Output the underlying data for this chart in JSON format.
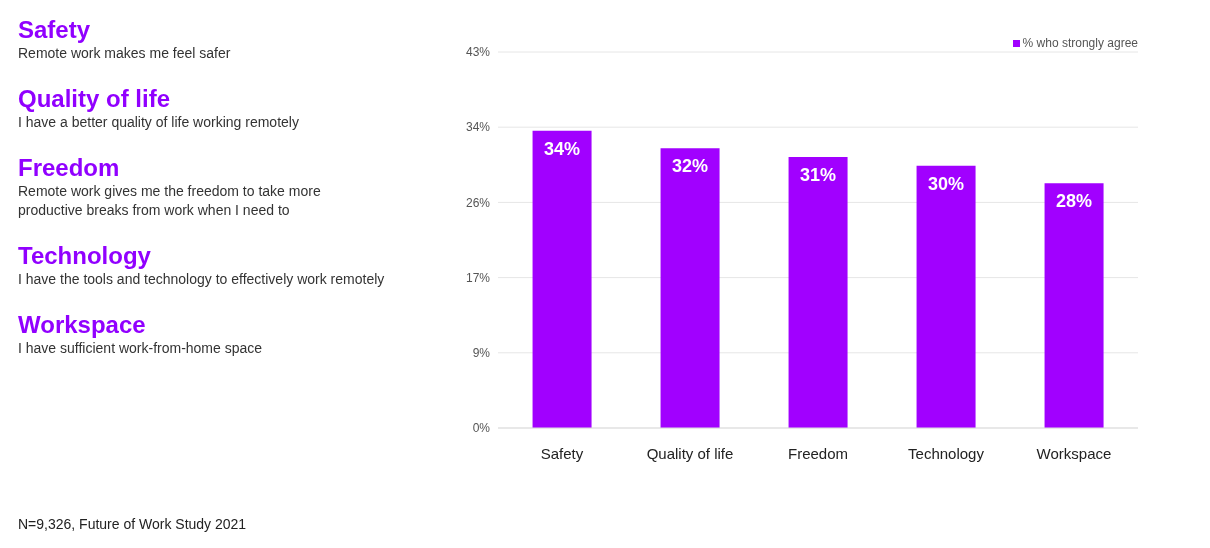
{
  "chart_data": {
    "type": "bar",
    "categories": [
      "Safety",
      "Quality of life",
      "Freedom",
      "Technology",
      "Workspace"
    ],
    "series": [
      {
        "name": "% who strongly agree",
        "color": "#a100ff",
        "values": [
          34,
          32,
          31,
          30,
          28
        ],
        "value_labels": [
          "34%",
          "32%",
          "31%",
          "30%",
          "28%"
        ]
      }
    ],
    "ylim": [
      0,
      43
    ],
    "yticks": [
      {
        "value": 0,
        "label": "0%"
      },
      {
        "value": 8.6,
        "label": "9%"
      },
      {
        "value": 17.2,
        "label": "17%"
      },
      {
        "value": 25.8,
        "label": "26%"
      },
      {
        "value": 34.4,
        "label": "34%"
      },
      {
        "value": 43,
        "label": "43%"
      }
    ],
    "grid": "y",
    "legend": "top right",
    "annotations": [
      "Safety",
      "Remote work makes me feel safer",
      "Quality of life",
      "I have a better quality of life working remotely",
      "Freedom",
      "Remote work gives me the freedom to take more productive breaks from work when I need to",
      "Technology",
      "I have the tools and technology to effectively work remotely",
      "Workspace",
      "I have sufficient work-from-home space",
      "N=9,326, Future of Work Study 2021"
    ]
  }
}
